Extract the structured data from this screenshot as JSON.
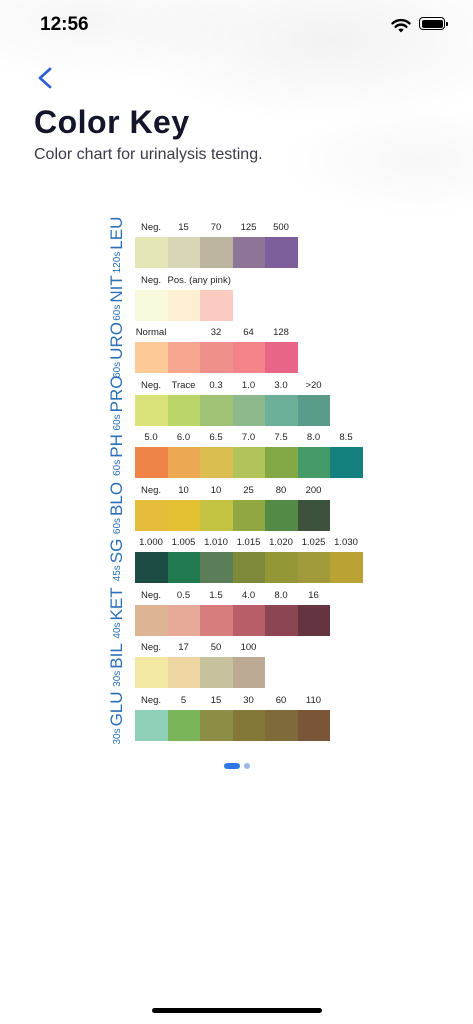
{
  "status_bar": {
    "time": "12:56"
  },
  "header": {
    "title": "Color Key",
    "subtitle": "Color chart for urinalysis testing."
  },
  "icons": {
    "back": "chevron-left-icon",
    "wifi": "wifi-icon",
    "battery": "battery-icon"
  },
  "accent_color": "#2f78e3",
  "chart": {
    "rows": [
      {
        "time": "120s",
        "name": "LEU",
        "labels": [
          "Neg.",
          "15",
          "70",
          "125",
          "500"
        ],
        "colors": [
          "#e4e6b7",
          "#d8d6b6",
          "#bdb4a0",
          "#8c7597",
          "#7d609b"
        ]
      },
      {
        "time": "60s",
        "name": "NIT",
        "labels": [
          "Neg.",
          "Pos. (any pink)",
          ""
        ],
        "colors": [
          "#f8f8dc",
          "#fdf0d2",
          "#fbcbc2"
        ]
      },
      {
        "time": "60s",
        "name": "URO",
        "labels": [
          "Normal",
          "",
          "32",
          "64",
          "128"
        ],
        "colors": [
          "#fdc996",
          "#f7a68f",
          "#ef908b",
          "#f38388",
          "#e96588"
        ]
      },
      {
        "time": "60s",
        "name": "PRO",
        "labels": [
          "Neg.",
          "Trace",
          "0.3",
          "1.0",
          "3.0",
          ">20"
        ],
        "colors": [
          "#dae37a",
          "#bcd568",
          "#a0c275",
          "#8db98c",
          "#6daf98",
          "#5a9b89"
        ]
      },
      {
        "time": "60s",
        "name": "PH",
        "labels": [
          "5.0",
          "6.0",
          "6.5",
          "7.0",
          "7.5",
          "8.0",
          "8.5"
        ],
        "colors": [
          "#ef8448",
          "#eca853",
          "#dbbd50",
          "#b3c35c",
          "#83a846",
          "#449a69",
          "#13807e"
        ]
      },
      {
        "time": "60s",
        "name": "BLO",
        "labels": [
          "Neg.",
          "10",
          "10",
          "25",
          "80",
          "200"
        ],
        "colors": [
          "#e5bd3b",
          "#e4c133",
          "#c4c242",
          "#91a842",
          "#538a45",
          "#3d523c"
        ]
      },
      {
        "time": "45s",
        "name": "SG",
        "labels": [
          "1.000",
          "1.005",
          "1.010",
          "1.015",
          "1.020",
          "1.025",
          "1.030"
        ],
        "colors": [
          "#1d4c45",
          "#227a50",
          "#5b7e58",
          "#7e8a3a",
          "#939735",
          "#a19a3a",
          "#bba235"
        ]
      },
      {
        "time": "40s",
        "name": "KET",
        "labels": [
          "Neg.",
          "0.5",
          "1.5",
          "4.0",
          "8.0",
          "16"
        ],
        "colors": [
          "#ddb595",
          "#e8aa98",
          "#d77d7e",
          "#b85e69",
          "#8b4553",
          "#643440"
        ]
      },
      {
        "time": "30s",
        "name": "BIL",
        "labels": [
          "Neg.",
          "17",
          "50",
          "100"
        ],
        "colors": [
          "#f3e9a4",
          "#eed6a3",
          "#c6c29e",
          "#bcaa95"
        ]
      },
      {
        "time": "30s",
        "name": "GLU",
        "labels": [
          "Neg.",
          "5",
          "15",
          "30",
          "60",
          "110"
        ],
        "colors": [
          "#8fd1b8",
          "#7ab55a",
          "#8c8e45",
          "#837838",
          "#7f6b39",
          "#7b5537"
        ]
      }
    ]
  },
  "pager": {
    "pages": 2,
    "active": 1
  }
}
